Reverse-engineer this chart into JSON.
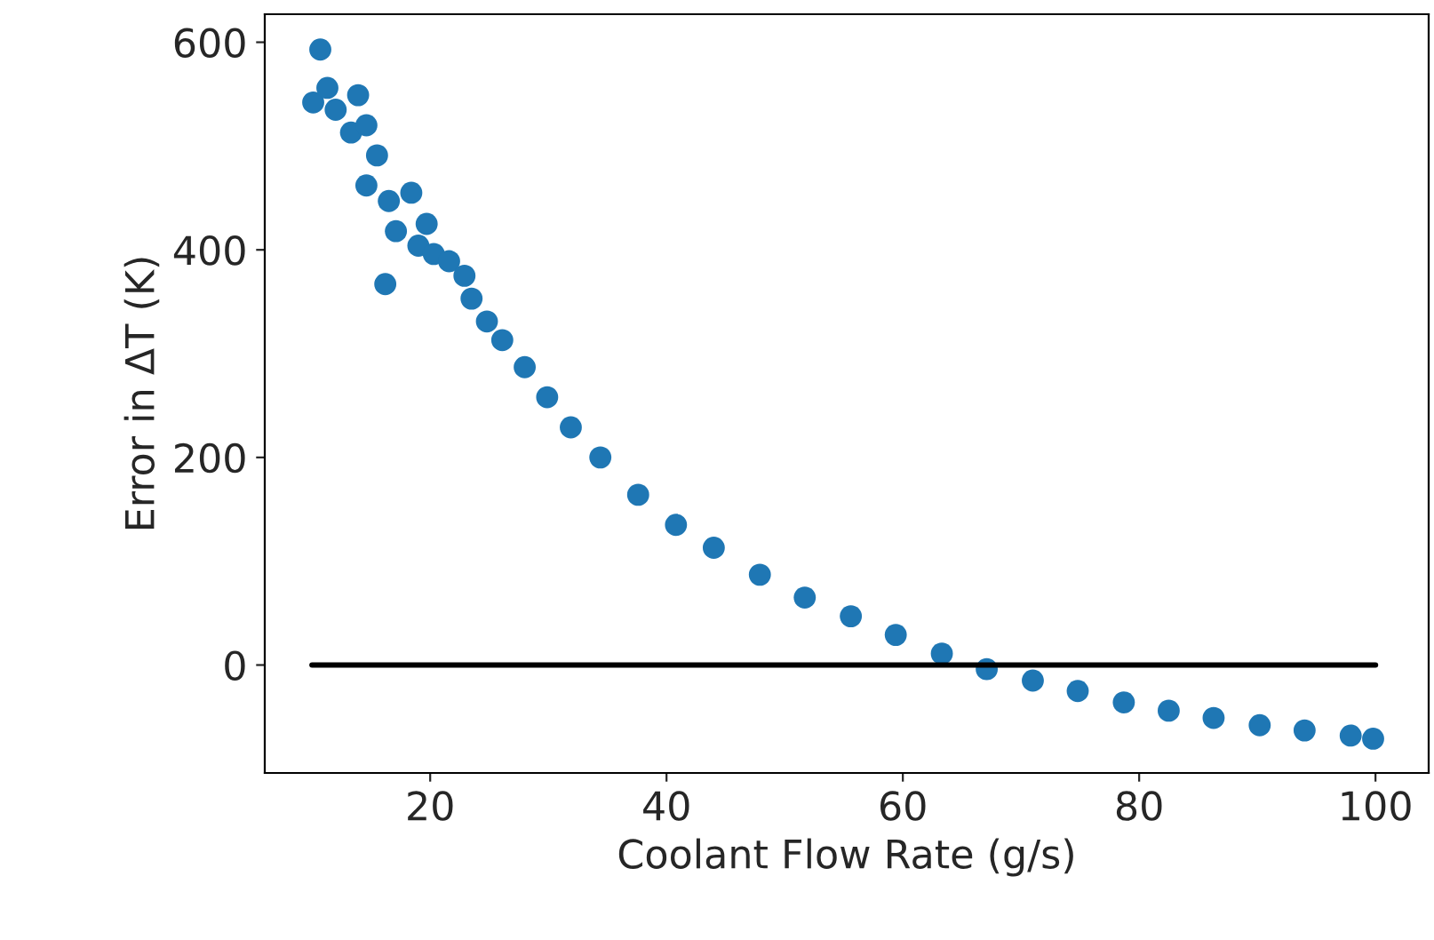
{
  "chart_data": {
    "type": "scatter",
    "xlabel": "Coolant Flow Rate (g/s)",
    "ylabel": "Error in ΔT (K)",
    "xlim": [
      6,
      104.5
    ],
    "xticks": [
      20,
      40,
      60,
      80,
      100
    ],
    "ylim": [
      -104,
      627
    ],
    "yticks": [
      0,
      200,
      400,
      600
    ],
    "grid": false,
    "legend": false,
    "marker": "circle",
    "series": [
      {
        "color": "#1f77b4",
        "x": [
          10.1,
          10.7,
          11.3,
          12,
          13.3,
          13.9,
          14.6,
          14.6,
          15.5,
          16.2,
          16.5,
          17.1,
          18.4,
          19,
          19.7,
          20.3,
          21.6,
          22.9,
          23.5,
          24.8,
          26.1,
          28,
          29.9,
          31.9,
          34.4,
          37.6,
          40.8,
          44,
          47.9,
          51.7,
          55.6,
          59.4,
          63.3,
          67.1,
          71,
          74.8,
          78.7,
          82.5,
          86.3,
          90.2,
          94,
          97.9,
          99.8
        ],
        "values": [
          542,
          593,
          556,
          535,
          513,
          549,
          520,
          462,
          491,
          367,
          447,
          418,
          455,
          404,
          425,
          396,
          389,
          375,
          353,
          331,
          313,
          287,
          258,
          229,
          200,
          164,
          135,
          113,
          87,
          65,
          47,
          29,
          11,
          -4,
          -15,
          -25,
          -36,
          -44,
          -51,
          -58,
          -63,
          -68,
          -71
        ]
      },
      {
        "type": "line",
        "color": "#000000",
        "x": [
          10,
          100
        ],
        "values": [
          0,
          0
        ],
        "line_style": "solid",
        "marker": "none"
      }
    ]
  }
}
